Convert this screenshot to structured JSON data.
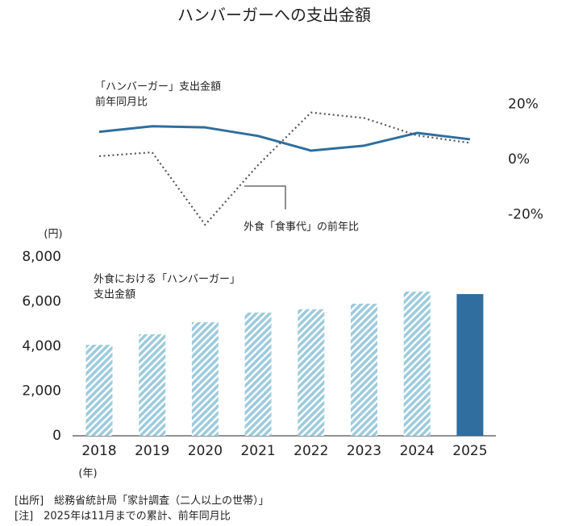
{
  "title": "ハンバーガーへの支出金額",
  "chart_data": [
    {
      "type": "line",
      "categories": [
        null,
        null,
        null,
        null,
        null,
        null,
        null,
        null
      ],
      "series": [
        {
          "name": [
            "「ハンバーガー」支出金額",
            "前年同月比"
          ],
          "color": "#2f6e9e",
          "style": "solid",
          "values": [
            10,
            12,
            11.6,
            8.5,
            3.2,
            5,
            9.6,
            7.3
          ]
        },
        {
          "name": [
            "外食「食事代」の前年比"
          ],
          "color": "#555555",
          "style": "dotted",
          "values": [
            1.2,
            2.6,
            -23.6,
            -2,
            17,
            15,
            8.7,
            6
          ]
        }
      ],
      "ylim": [
        -30,
        30
      ],
      "yticks": [
        {
          "value": 20,
          "label": "20%"
        },
        {
          "value": 0,
          "label": "0%"
        },
        {
          "value": -20,
          "label": "-20%"
        }
      ],
      "axis_side": "right"
    },
    {
      "type": "bar",
      "categories": [
        "2018",
        "2019",
        "2020",
        "2021",
        "2022",
        "2023",
        "2024",
        "2025"
      ],
      "values": [
        4070,
        4540,
        5080,
        5510,
        5660,
        5910,
        6450,
        6340
      ],
      "fills": [
        "hatch",
        "hatch",
        "hatch",
        "hatch",
        "hatch",
        "hatch",
        "hatch",
        "solid"
      ],
      "hatch_color": "#9ccbdc",
      "solid_color": "#2f6e9e",
      "annotation": [
        "外食における「ハンバーガー」",
        "支出金額"
      ],
      "ylabel": "(円)",
      "xlabel": "(年)",
      "ylim": [
        0,
        8000
      ],
      "yticks": [
        0,
        {
          "value": 2000,
          "label": "2,000"
        },
        {
          "value": 4000,
          "label": "4,000"
        },
        {
          "value": 6000,
          "label": "6,000"
        },
        {
          "value": 8000,
          "label": "8,000"
        }
      ]
    }
  ],
  "notes": [
    "[出所]　総務省統計局「家計調査（二人以上の世帯）」",
    "[注]　2025年は11月までの累計、前年同月比"
  ]
}
